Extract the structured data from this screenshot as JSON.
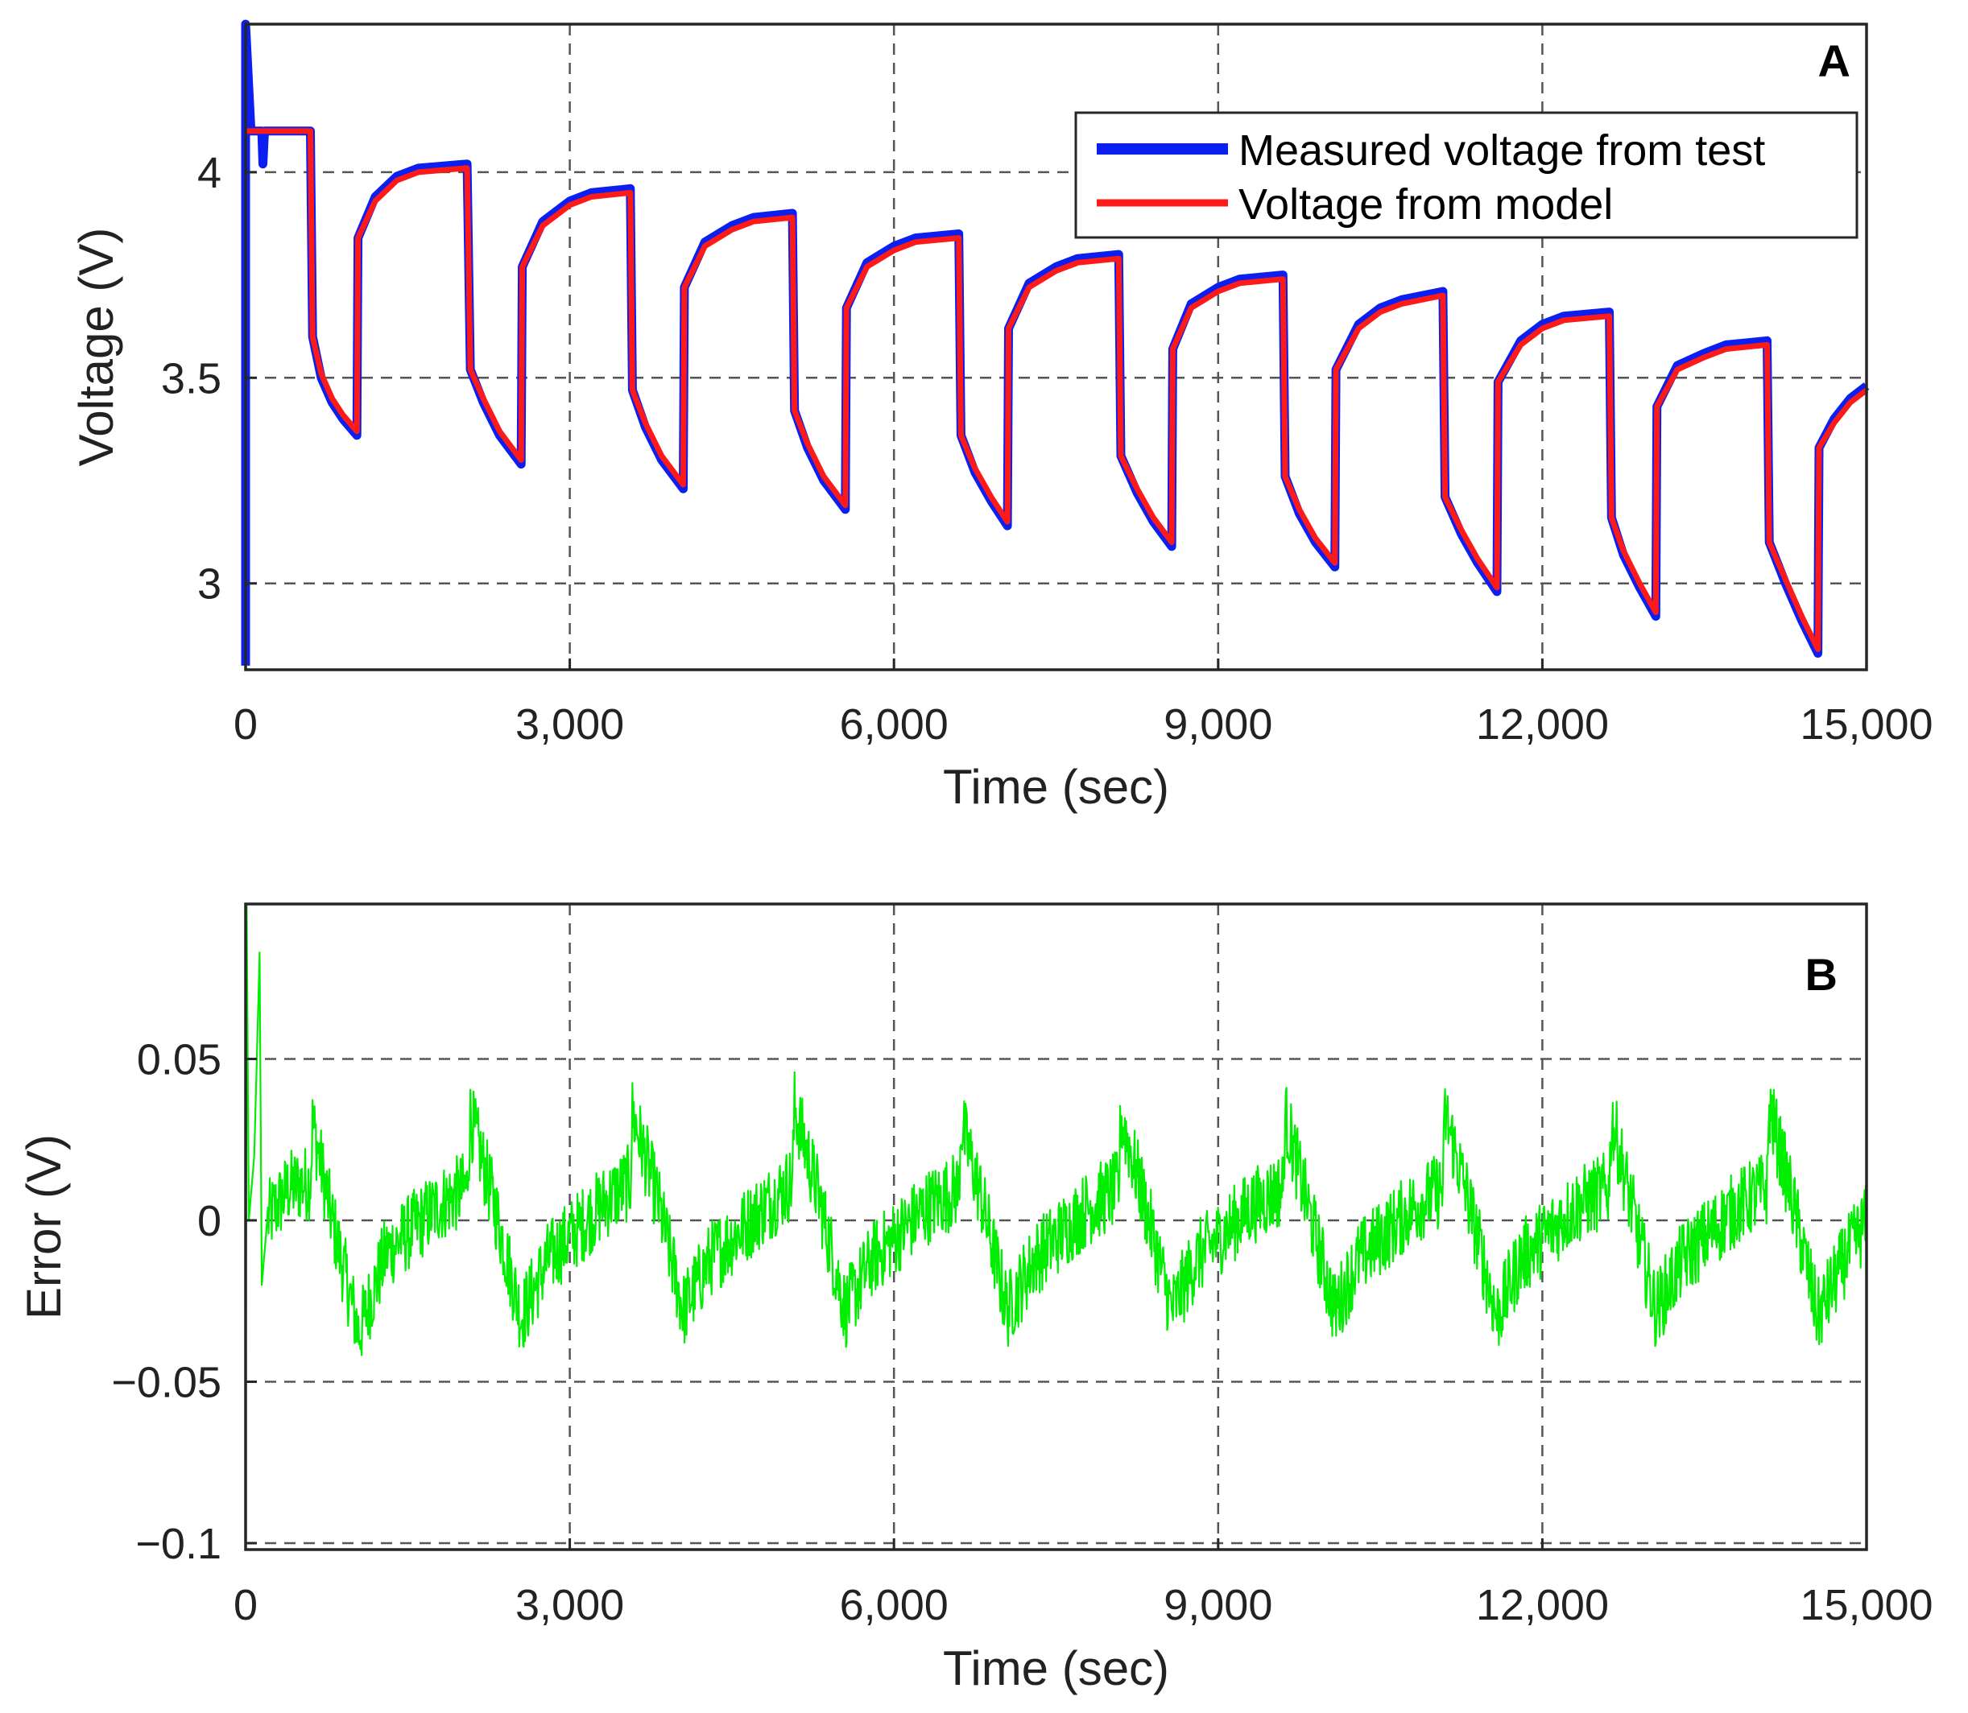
{
  "chart_data": [
    {
      "type": "line",
      "panel_label": "A",
      "xlabel": "Time (sec)",
      "ylabel": "Voltage (V)",
      "xlim": [
        0,
        15000
      ],
      "ylim": [
        2.79,
        4.36
      ],
      "xticks": [
        0,
        3000,
        6000,
        9000,
        12000,
        15000
      ],
      "xtick_labels": [
        "0",
        "3,000",
        "6,000",
        "9,000",
        "12,000",
        "15,000"
      ],
      "yticks": [
        3,
        3.5,
        4
      ],
      "ytick_labels": [
        "3",
        "3.5",
        "4"
      ],
      "grid": true,
      "legend_position": "top-right",
      "series": [
        {
          "name": "Measured voltage from test",
          "color": "#0a1ff0",
          "points": [
            [
              0,
              2.8
            ],
            [
              0,
              4.36
            ],
            [
              50,
              4.1
            ],
            [
              150,
              4.1
            ],
            [
              160,
              4.02
            ],
            [
              175,
              4.1
            ],
            [
              600,
              4.1
            ],
            [
              620,
              3.6
            ],
            [
              700,
              3.5
            ],
            [
              800,
              3.44
            ],
            [
              900,
              3.4
            ],
            [
              1030,
              3.36
            ],
            [
              1040,
              3.84
            ],
            [
              1200,
              3.94
            ],
            [
              1400,
              3.99
            ],
            [
              1600,
              4.01
            ],
            [
              2050,
              4.02
            ],
            [
              2080,
              3.52
            ],
            [
              2200,
              3.44
            ],
            [
              2350,
              3.36
            ],
            [
              2550,
              3.29
            ],
            [
              2560,
              3.77
            ],
            [
              2750,
              3.88
            ],
            [
              3000,
              3.93
            ],
            [
              3200,
              3.95
            ],
            [
              3560,
              3.96
            ],
            [
              3580,
              3.47
            ],
            [
              3700,
              3.38
            ],
            [
              3850,
              3.3
            ],
            [
              4050,
              3.23
            ],
            [
              4060,
              3.72
            ],
            [
              4250,
              3.83
            ],
            [
              4500,
              3.87
            ],
            [
              4700,
              3.89
            ],
            [
              5060,
              3.9
            ],
            [
              5080,
              3.42
            ],
            [
              5200,
              3.33
            ],
            [
              5350,
              3.25
            ],
            [
              5550,
              3.18
            ],
            [
              5560,
              3.67
            ],
            [
              5750,
              3.78
            ],
            [
              6000,
              3.82
            ],
            [
              6200,
              3.84
            ],
            [
              6600,
              3.85
            ],
            [
              6620,
              3.36
            ],
            [
              6750,
              3.27
            ],
            [
              6900,
              3.2
            ],
            [
              7050,
              3.14
            ],
            [
              7060,
              3.62
            ],
            [
              7250,
              3.73
            ],
            [
              7500,
              3.77
            ],
            [
              7700,
              3.79
            ],
            [
              8080,
              3.8
            ],
            [
              8100,
              3.31
            ],
            [
              8250,
              3.22
            ],
            [
              8400,
              3.15
            ],
            [
              8570,
              3.09
            ],
            [
              8580,
              3.57
            ],
            [
              8750,
              3.68
            ],
            [
              9000,
              3.72
            ],
            [
              9200,
              3.74
            ],
            [
              9600,
              3.75
            ],
            [
              9620,
              3.26
            ],
            [
              9750,
              3.17
            ],
            [
              9900,
              3.1
            ],
            [
              10080,
              3.04
            ],
            [
              10090,
              3.52
            ],
            [
              10300,
              3.63
            ],
            [
              10500,
              3.67
            ],
            [
              10700,
              3.69
            ],
            [
              11080,
              3.71
            ],
            [
              11100,
              3.21
            ],
            [
              11250,
              3.12
            ],
            [
              11400,
              3.05
            ],
            [
              11580,
              2.98
            ],
            [
              11590,
              3.49
            ],
            [
              11800,
              3.59
            ],
            [
              12000,
              3.63
            ],
            [
              12200,
              3.65
            ],
            [
              12620,
              3.66
            ],
            [
              12640,
              3.16
            ],
            [
              12750,
              3.07
            ],
            [
              12900,
              2.99
            ],
            [
              13050,
              2.92
            ],
            [
              13060,
              3.43
            ],
            [
              13250,
              3.53
            ],
            [
              13500,
              3.56
            ],
            [
              13700,
              3.58
            ],
            [
              14080,
              3.59
            ],
            [
              14100,
              3.1
            ],
            [
              14250,
              3.0
            ],
            [
              14400,
              2.91
            ],
            [
              14550,
              2.83
            ],
            [
              14560,
              3.33
            ],
            [
              14700,
              3.4
            ],
            [
              14850,
              3.45
            ],
            [
              15000,
              3.48
            ]
          ]
        },
        {
          "name": "Voltage from model",
          "color": "#ff1a1a",
          "points": [
            [
              0,
              4.1
            ],
            [
              600,
              4.1
            ],
            [
              620,
              3.6
            ],
            [
              700,
              3.51
            ],
            [
              800,
              3.45
            ],
            [
              900,
              3.41
            ],
            [
              1030,
              3.37
            ],
            [
              1040,
              3.84
            ],
            [
              1200,
              3.93
            ],
            [
              1400,
              3.98
            ],
            [
              1600,
              4.0
            ],
            [
              2050,
              4.01
            ],
            [
              2080,
              3.52
            ],
            [
              2200,
              3.45
            ],
            [
              2350,
              3.37
            ],
            [
              2550,
              3.3
            ],
            [
              2560,
              3.77
            ],
            [
              2750,
              3.87
            ],
            [
              3000,
              3.92
            ],
            [
              3200,
              3.94
            ],
            [
              3560,
              3.95
            ],
            [
              3580,
              3.47
            ],
            [
              3700,
              3.39
            ],
            [
              3850,
              3.31
            ],
            [
              4050,
              3.24
            ],
            [
              4060,
              3.72
            ],
            [
              4250,
              3.82
            ],
            [
              4500,
              3.86
            ],
            [
              4700,
              3.88
            ],
            [
              5060,
              3.89
            ],
            [
              5080,
              3.42
            ],
            [
              5200,
              3.34
            ],
            [
              5350,
              3.26
            ],
            [
              5550,
              3.19
            ],
            [
              5560,
              3.67
            ],
            [
              5750,
              3.77
            ],
            [
              6000,
              3.81
            ],
            [
              6200,
              3.83
            ],
            [
              6600,
              3.84
            ],
            [
              6620,
              3.36
            ],
            [
              6750,
              3.28
            ],
            [
              6900,
              3.21
            ],
            [
              7050,
              3.15
            ],
            [
              7060,
              3.62
            ],
            [
              7250,
              3.72
            ],
            [
              7500,
              3.76
            ],
            [
              7700,
              3.78
            ],
            [
              8080,
              3.79
            ],
            [
              8100,
              3.31
            ],
            [
              8250,
              3.23
            ],
            [
              8400,
              3.16
            ],
            [
              8570,
              3.1
            ],
            [
              8580,
              3.57
            ],
            [
              8750,
              3.67
            ],
            [
              9000,
              3.71
            ],
            [
              9200,
              3.73
            ],
            [
              9600,
              3.74
            ],
            [
              9620,
              3.26
            ],
            [
              9750,
              3.18
            ],
            [
              9900,
              3.11
            ],
            [
              10080,
              3.05
            ],
            [
              10090,
              3.52
            ],
            [
              10300,
              3.62
            ],
            [
              10500,
              3.66
            ],
            [
              10700,
              3.68
            ],
            [
              11080,
              3.7
            ],
            [
              11100,
              3.21
            ],
            [
              11250,
              3.13
            ],
            [
              11400,
              3.06
            ],
            [
              11580,
              2.99
            ],
            [
              11590,
              3.49
            ],
            [
              11800,
              3.58
            ],
            [
              12000,
              3.62
            ],
            [
              12200,
              3.64
            ],
            [
              12620,
              3.65
            ],
            [
              12640,
              3.16
            ],
            [
              12750,
              3.08
            ],
            [
              12900,
              3.0
            ],
            [
              13050,
              2.93
            ],
            [
              13060,
              3.43
            ],
            [
              13250,
              3.52
            ],
            [
              13500,
              3.55
            ],
            [
              13700,
              3.57
            ],
            [
              14080,
              3.58
            ],
            [
              14100,
              3.1
            ],
            [
              14250,
              3.01
            ],
            [
              14400,
              2.92
            ],
            [
              14550,
              2.84
            ],
            [
              14560,
              3.33
            ],
            [
              14700,
              3.39
            ],
            [
              14850,
              3.44
            ],
            [
              15000,
              3.47
            ]
          ]
        }
      ]
    },
    {
      "type": "line",
      "panel_label": "B",
      "xlabel": "Time (sec)",
      "ylabel": "Error (V)",
      "xlim": [
        0,
        15000
      ],
      "ylim": [
        -0.102,
        0.098
      ],
      "xticks": [
        0,
        3000,
        6000,
        9000,
        12000,
        15000
      ],
      "xtick_labels": [
        "0",
        "3,000",
        "6,000",
        "9,000",
        "12,000",
        "15,000"
      ],
      "yticks": [
        -0.1,
        -0.05,
        0,
        0.05
      ],
      "ytick_labels": [
        "−0.1",
        "−0.05",
        "0",
        "0.05"
      ],
      "grid": true,
      "series": [
        {
          "name": "Error",
          "color": "#00ee00",
          "noise_amplitude": 0.012,
          "points": [
            [
              0,
              -0.1
            ],
            [
              10,
              0.098
            ],
            [
              30,
              0.0
            ],
            [
              80,
              0.02
            ],
            [
              130,
              0.083
            ],
            [
              150,
              -0.02
            ],
            [
              200,
              0.0
            ],
            [
              400,
              0.01
            ],
            [
              600,
              0.012
            ],
            [
              620,
              0.03
            ],
            [
              800,
              0.0
            ],
            [
              1050,
              -0.035
            ],
            [
              1300,
              -0.01
            ],
            [
              1800,
              0.005
            ],
            [
              2050,
              0.01
            ],
            [
              2080,
              0.032
            ],
            [
              2300,
              0.005
            ],
            [
              2550,
              -0.03
            ],
            [
              2800,
              -0.012
            ],
            [
              3300,
              0.005
            ],
            [
              3560,
              0.012
            ],
            [
              3580,
              0.033
            ],
            [
              3800,
              0.008
            ],
            [
              4050,
              -0.028
            ],
            [
              4300,
              -0.012
            ],
            [
              4800,
              0.004
            ],
            [
              5060,
              0.012
            ],
            [
              5080,
              0.035
            ],
            [
              5300,
              0.008
            ],
            [
              5550,
              -0.028
            ],
            [
              5800,
              -0.012
            ],
            [
              6300,
              0.004
            ],
            [
              6600,
              0.01
            ],
            [
              6620,
              0.03
            ],
            [
              6800,
              0.008
            ],
            [
              7050,
              -0.028
            ],
            [
              7300,
              -0.012
            ],
            [
              7800,
              0.004
            ],
            [
              8080,
              0.01
            ],
            [
              8100,
              0.032
            ],
            [
              8300,
              0.008
            ],
            [
              8570,
              -0.028
            ],
            [
              8800,
              -0.012
            ],
            [
              9300,
              0.004
            ],
            [
              9600,
              0.01
            ],
            [
              9620,
              0.032
            ],
            [
              9800,
              0.008
            ],
            [
              10080,
              -0.028
            ],
            [
              10300,
              -0.012
            ],
            [
              10800,
              0.004
            ],
            [
              11080,
              0.01
            ],
            [
              11100,
              0.033
            ],
            [
              11300,
              0.008
            ],
            [
              11580,
              -0.03
            ],
            [
              11800,
              -0.012
            ],
            [
              12300,
              0.004
            ],
            [
              12620,
              0.01
            ],
            [
              12640,
              0.032
            ],
            [
              12800,
              0.008
            ],
            [
              13050,
              -0.028
            ],
            [
              13300,
              -0.012
            ],
            [
              13800,
              0.004
            ],
            [
              14080,
              0.01
            ],
            [
              14100,
              0.035
            ],
            [
              14300,
              0.008
            ],
            [
              14550,
              -0.03
            ],
            [
              14800,
              -0.012
            ],
            [
              15000,
              0.0
            ]
          ]
        }
      ]
    }
  ]
}
